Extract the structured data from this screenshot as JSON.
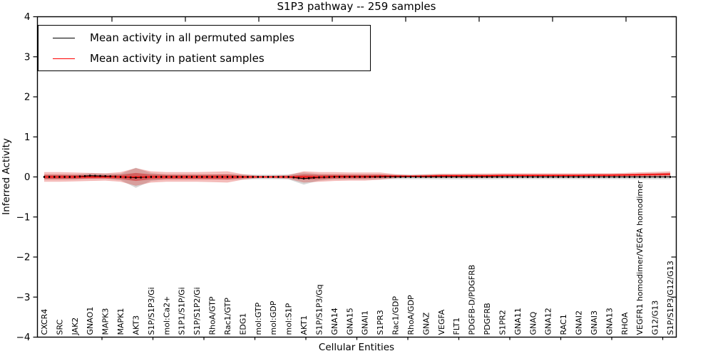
{
  "title": "S1P3 pathway -- 259 samples",
  "axes": {
    "xlabel": "Cellular Entities",
    "ylabel": "Inferred Activity"
  },
  "colors": {
    "permuted_line": "#000000",
    "patient_line": "#ff0000",
    "patient_band_outer": "rgba(222,45,38,0.32)",
    "patient_band_inner": "rgba(205,32,32,0.50)",
    "permuted_band": "rgba(0,0,0,0.16)",
    "frame": "#000000"
  },
  "chart_data": {
    "type": "line",
    "title": "S1P3 pathway -- 259 samples",
    "xlabel": "Cellular Entities",
    "ylabel": "Inferred Activity",
    "ylim": [
      -4,
      4
    ],
    "yticks": [
      4,
      3,
      2,
      1,
      0,
      -1,
      -2,
      -3,
      -4
    ],
    "grid": false,
    "legend_position": "upper left",
    "categories": [
      "CXCR4",
      "SRC",
      "JAK2",
      "GNAO1",
      "MAPK3",
      "MAPK1",
      "AKT3",
      "S1P/S1P3/Gi",
      "mol:Ca2+",
      "S1P1/S1P/Gi",
      "S1P/S1P2/Gi",
      "RhoA/GTP",
      "Rac1/GTP",
      "EDG1",
      "mol:GTP",
      "mol:GDP",
      "mol:S1P",
      "AKT1",
      "S1P/S1P3/Gq",
      "GNA14",
      "GNA15",
      "GNAI1",
      "S1PR3",
      "Rac1/GDP",
      "RhoA/GDP",
      "GNAZ",
      "VEGFA",
      "FLT1",
      "PDGFB-D/PDGFRB",
      "PDGFRB",
      "S1PR2",
      "GNA11",
      "GNAQ",
      "GNA12",
      "RAC1",
      "GNAI2",
      "GNAI3",
      "GNA13",
      "RHOA",
      "VEGFR1 homodimer/VEGFA homodimer",
      "G12/G13",
      "S1P/S1P3/G12/G13"
    ],
    "series": [
      {
        "name": "Mean activity in all permuted samples",
        "color": "#000000",
        "values": [
          0,
          0,
          0,
          0.03,
          0.02,
          0,
          -0.02,
          0,
          0,
          0,
          0,
          0,
          0,
          0,
          0,
          0,
          0,
          -0.04,
          -0.01,
          0,
          0,
          0,
          0,
          0,
          0,
          0,
          0,
          0,
          0,
          0,
          0,
          0,
          0,
          0,
          0,
          0,
          0,
          0,
          0,
          0,
          0,
          0
        ],
        "band_halfwidth": [
          0.06,
          0.06,
          0.06,
          0.06,
          0.06,
          0.08,
          0.25,
          0.1,
          0.06,
          0.06,
          0.06,
          0.06,
          0.07,
          0.06,
          0.055,
          0.055,
          0.06,
          0.15,
          0.08,
          0.06,
          0.06,
          0.06,
          0.06,
          0.055,
          0.055,
          0.055,
          0.06,
          0.06,
          0.06,
          0.06,
          0.055,
          0.055,
          0.055,
          0.055,
          0.055,
          0.055,
          0.055,
          0.055,
          0.055,
          0.06,
          0.06,
          0.06
        ]
      },
      {
        "name": "Mean activity in patient samples",
        "color": "#ff0000",
        "values": [
          0,
          0,
          0,
          0,
          0,
          0,
          0,
          0,
          0,
          0,
          0,
          0,
          0,
          0,
          0,
          0,
          0,
          0,
          0,
          0.01,
          0.01,
          0.01,
          0.02,
          0.02,
          0.02,
          0.02,
          0.03,
          0.03,
          0.03,
          0.03,
          0.04,
          0.04,
          0.04,
          0.04,
          0.04,
          0.04,
          0.045,
          0.045,
          0.05,
          0.055,
          0.06,
          0.07
        ],
        "band_halfwidth": [
          0.12,
          0.12,
          0.11,
          0.1,
          0.09,
          0.12,
          0.22,
          0.14,
          0.12,
          0.12,
          0.12,
          0.13,
          0.14,
          0.07,
          0.03,
          0.03,
          0.05,
          0.14,
          0.12,
          0.11,
          0.1,
          0.1,
          0.09,
          0.05,
          0.03,
          0.045,
          0.05,
          0.05,
          0.055,
          0.055,
          0.05,
          0.05,
          0.05,
          0.05,
          0.05,
          0.05,
          0.05,
          0.05,
          0.05,
          0.06,
          0.065,
          0.07
        ]
      }
    ]
  }
}
